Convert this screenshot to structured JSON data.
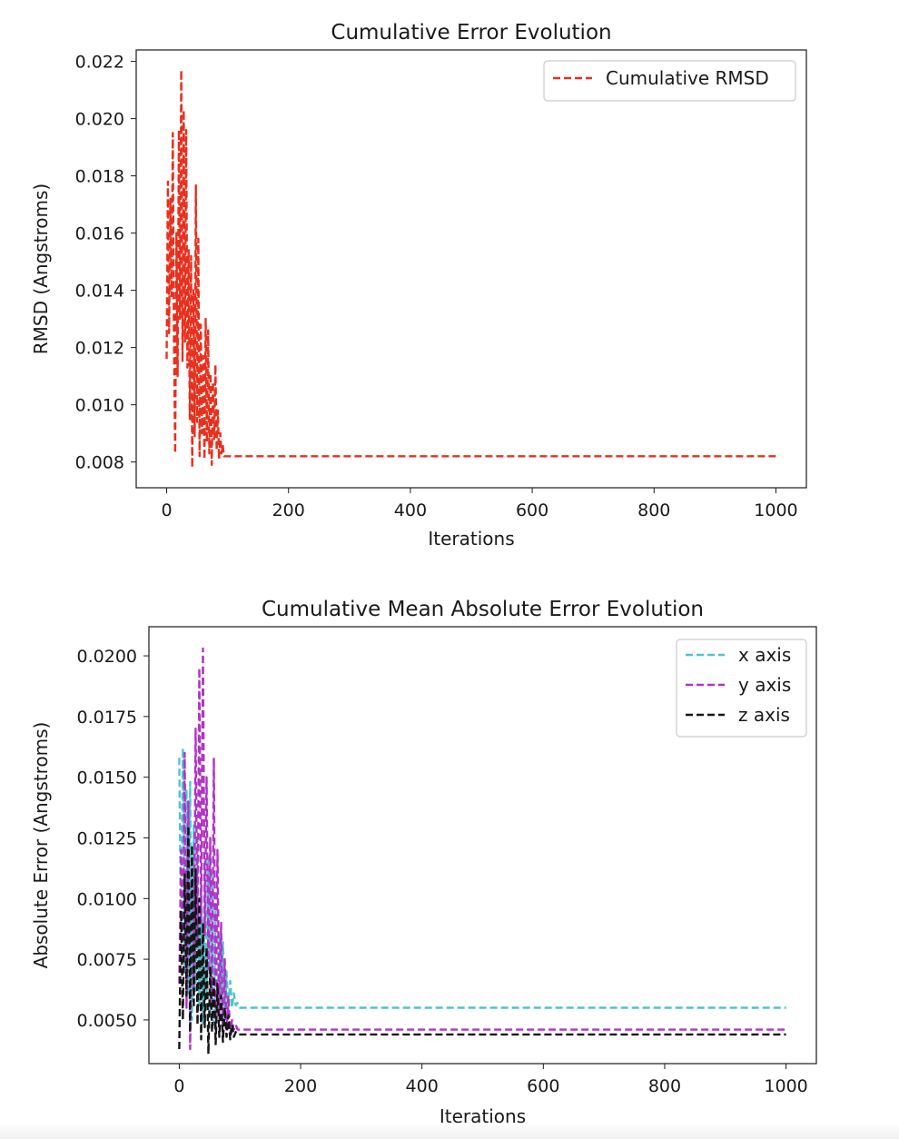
{
  "chart_data": [
    {
      "type": "line",
      "title": "Cumulative Error Evolution",
      "xlabel": "Iterations",
      "ylabel": "RMSD (Angstroms)",
      "xlim": [
        -50,
        1050
      ],
      "ylim": [
        0.0071,
        0.0224
      ],
      "xticks": [
        0,
        200,
        400,
        600,
        800,
        1000
      ],
      "yticks": [
        0.008,
        0.01,
        0.012,
        0.014,
        0.016,
        0.018,
        0.02,
        0.022
      ],
      "ytick_labels": [
        "0.008",
        "0.010",
        "0.012",
        "0.014",
        "0.016",
        "0.018",
        "0.020",
        "0.022"
      ],
      "legend_position": "upper-right",
      "series": [
        {
          "name": "Cumulative RMSD",
          "color": "#e8301e",
          "style": "dashed",
          "x": [
            0,
            2,
            4,
            6,
            8,
            10,
            12,
            14,
            16,
            18,
            20,
            22,
            24,
            26,
            28,
            30,
            32,
            34,
            36,
            38,
            40,
            42,
            44,
            46,
            48,
            50,
            52,
            54,
            56,
            58,
            60,
            62,
            64,
            66,
            68,
            70,
            72,
            74,
            76,
            78,
            80,
            82,
            84,
            86,
            88,
            90,
            92,
            94,
            96,
            98,
            100,
            1000
          ],
          "values": [
            0.0116,
            0.0178,
            0.0125,
            0.0172,
            0.0138,
            0.0195,
            0.0121,
            0.0083,
            0.016,
            0.011,
            0.0196,
            0.013,
            0.0217,
            0.0115,
            0.0203,
            0.0122,
            0.0196,
            0.0113,
            0.0154,
            0.0095,
            0.0152,
            0.0078,
            0.014,
            0.0089,
            0.0177,
            0.0094,
            0.0158,
            0.0082,
            0.0128,
            0.009,
            0.0117,
            0.0081,
            0.013,
            0.0087,
            0.0126,
            0.0083,
            0.0111,
            0.0079,
            0.0108,
            0.0088,
            0.0114,
            0.0084,
            0.0098,
            0.0081,
            0.009,
            0.0083,
            0.0086,
            0.0082,
            0.0082,
            0.0082,
            0.0082,
            0.0082
          ]
        }
      ]
    },
    {
      "type": "line",
      "title": "Cumulative Mean Absolute Error Evolution",
      "xlabel": "Iterations",
      "ylabel": "Absolute Error (Angstroms)",
      "xlim": [
        -50,
        1050
      ],
      "ylim": [
        0.0032,
        0.0212
      ],
      "xticks": [
        0,
        200,
        400,
        600,
        800,
        1000
      ],
      "yticks": [
        0.005,
        0.0075,
        0.01,
        0.0125,
        0.015,
        0.0175,
        0.02
      ],
      "ytick_labels": [
        "0.0050",
        "0.0075",
        "0.0100",
        "0.0125",
        "0.0150",
        "0.0175",
        "0.0200"
      ],
      "legend_position": "upper-right",
      "series": [
        {
          "name": "x axis",
          "color": "#4fc3cf",
          "style": "dashed",
          "x": [
            0,
            3,
            6,
            9,
            12,
            15,
            18,
            21,
            24,
            27,
            30,
            33,
            36,
            39,
            42,
            45,
            48,
            51,
            54,
            57,
            60,
            63,
            66,
            69,
            72,
            75,
            78,
            81,
            84,
            87,
            90,
            93,
            96,
            100,
            1000
          ],
          "values": [
            0.0158,
            0.0082,
            0.0162,
            0.007,
            0.0145,
            0.006,
            0.0148,
            0.005,
            0.013,
            0.0062,
            0.0125,
            0.0055,
            0.0105,
            0.0048,
            0.0115,
            0.006,
            0.0118,
            0.0052,
            0.011,
            0.0048,
            0.0095,
            0.0053,
            0.0085,
            0.0058,
            0.0082,
            0.005,
            0.007,
            0.0054,
            0.0066,
            0.0055,
            0.0061,
            0.0056,
            0.0057,
            0.0055,
            0.0055
          ]
        },
        {
          "name": "y axis",
          "color": "#b233c8",
          "style": "dashed",
          "x": [
            0,
            3,
            6,
            9,
            12,
            15,
            18,
            21,
            24,
            27,
            30,
            33,
            36,
            39,
            42,
            45,
            48,
            51,
            54,
            57,
            60,
            63,
            66,
            69,
            72,
            75,
            78,
            81,
            84,
            87,
            90,
            93,
            96,
            100,
            1000
          ],
          "values": [
            0.0065,
            0.012,
            0.0075,
            0.016,
            0.0055,
            0.014,
            0.0038,
            0.0115,
            0.006,
            0.017,
            0.008,
            0.0195,
            0.009,
            0.0203,
            0.0085,
            0.015,
            0.007,
            0.0125,
            0.0055,
            0.0158,
            0.0045,
            0.012,
            0.005,
            0.009,
            0.0042,
            0.0075,
            0.0046,
            0.006,
            0.0044,
            0.005,
            0.0046,
            0.0048,
            0.0046,
            0.0046,
            0.0046
          ]
        },
        {
          "name": "z axis",
          "color": "#151515",
          "style": "dashed",
          "x": [
            0,
            3,
            6,
            9,
            12,
            15,
            18,
            21,
            24,
            27,
            30,
            33,
            36,
            39,
            42,
            45,
            48,
            51,
            54,
            57,
            60,
            63,
            66,
            69,
            72,
            75,
            78,
            81,
            84,
            87,
            90,
            93,
            96,
            100,
            1000
          ],
          "values": [
            0.0038,
            0.0095,
            0.005,
            0.011,
            0.006,
            0.013,
            0.0045,
            0.0122,
            0.0055,
            0.0112,
            0.0048,
            0.01,
            0.0042,
            0.009,
            0.0047,
            0.008,
            0.0036,
            0.0072,
            0.0045,
            0.0068,
            0.004,
            0.0065,
            0.0043,
            0.006,
            0.0041,
            0.0055,
            0.0043,
            0.0052,
            0.0042,
            0.0048,
            0.0043,
            0.0045,
            0.0044,
            0.0044,
            0.0044
          ]
        }
      ]
    }
  ]
}
